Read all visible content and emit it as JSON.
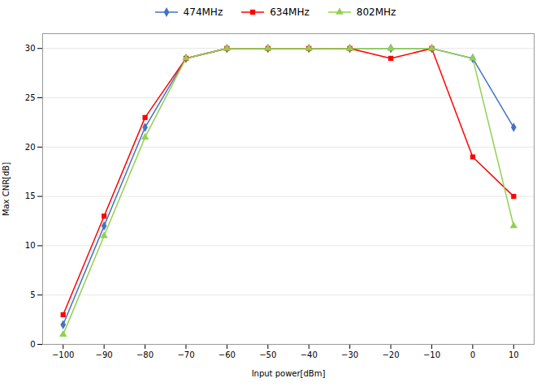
{
  "chart_data": {
    "type": "line",
    "xlabel": "Input power[dBm]",
    "ylabel": "Max CNR[dB]",
    "x": [
      -100,
      -90,
      -80,
      -70,
      -60,
      -50,
      -40,
      -30,
      -20,
      -10,
      0,
      10
    ],
    "series": [
      {
        "name": "474MHz",
        "color": "#4472C4",
        "marker": "diamond",
        "values": [
          2,
          12,
          22,
          29,
          30,
          30,
          30,
          30,
          30,
          30,
          29,
          22
        ]
      },
      {
        "name": "634MHz",
        "color": "#FF0000",
        "marker": "square",
        "values": [
          3,
          13,
          23,
          29,
          30,
          30,
          30,
          30,
          29,
          30,
          19,
          15
        ]
      },
      {
        "name": "802MHz",
        "color": "#92D050",
        "marker": "triangle",
        "values": [
          1,
          11,
          21,
          29,
          30,
          30,
          30,
          30,
          30,
          30,
          29,
          12
        ]
      }
    ],
    "xlim": [
      -105,
      15
    ],
    "ylim": [
      0,
      31.5
    ],
    "xticks": [
      -100,
      -90,
      -80,
      -70,
      -60,
      -50,
      -40,
      -30,
      -20,
      -10,
      0,
      10
    ],
    "yticks": [
      0,
      5,
      10,
      15,
      20,
      25,
      30
    ],
    "grid": true,
    "legend": "top"
  }
}
